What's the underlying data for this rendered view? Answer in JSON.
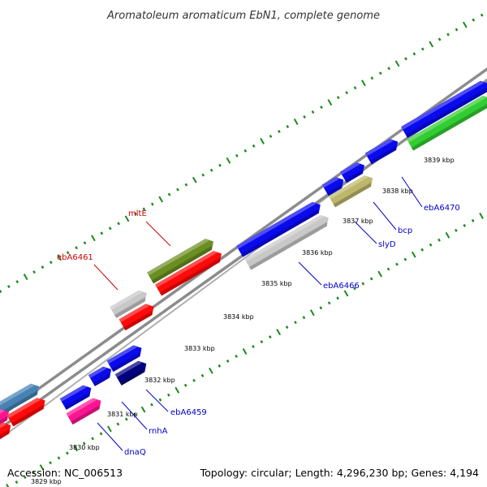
{
  "title": "Aromatoleum aromaticum EbN1, complete genome",
  "footer": {
    "accession": "Accession: NC_006513",
    "summary": "Topology: circular; Length: 4,296,230 bp; Genes: 4,194"
  },
  "kbp_ticks": [
    "3829 kbp",
    "3830 kbp",
    "3831 kbp",
    "3832 kbp",
    "3833 kbp",
    "3834 kbp",
    "3835 kbp",
    "3836 kbp",
    "3837 kbp",
    "3838 kbp",
    "3839 kbp"
  ],
  "gene_labels": [
    {
      "id": "mltE",
      "text": "mltE",
      "color": "#cc0000"
    },
    {
      "id": "ebA6461",
      "text": "ebA6461",
      "color": "#cc0000"
    },
    {
      "id": "ebA6459",
      "text": "ebA6459",
      "color": "#0000cc"
    },
    {
      "id": "rnhA",
      "text": "rnhA",
      "color": "#0000cc"
    },
    {
      "id": "dnaQ",
      "text": "dnaQ",
      "color": "#0000cc"
    },
    {
      "id": "ebA6466",
      "text": "ebA6466",
      "color": "#0000cc"
    },
    {
      "id": "slyD",
      "text": "slyD",
      "color": "#0000cc"
    },
    {
      "id": "bcp",
      "text": "bcp",
      "color": "#0000cc"
    },
    {
      "id": "ebA6470",
      "text": "ebA6470",
      "color": "#0000cc"
    }
  ],
  "colors": {
    "backbone": "#8c8c8c",
    "tick": "#1a8a1a",
    "blue": "#0a0aee",
    "red": "#ff0a0a",
    "grey": "#c8c8c8",
    "olive": "#6b8e23",
    "khaki": "#bdb76b",
    "green": "#32cd32",
    "steel": "#4682b4",
    "magenta": "#ff1493",
    "navy": "#000080"
  },
  "features": [
    {
      "lane": "a",
      "color": "steel"
    },
    {
      "lane": "b",
      "color": "magenta"
    },
    {
      "lane": "b",
      "color": "red"
    },
    {
      "lane": "b",
      "color": "red"
    },
    {
      "lane": "a",
      "color": "blue"
    },
    {
      "lane": "b",
      "color": "magenta"
    },
    {
      "lane": "a",
      "color": "blue"
    },
    {
      "lane": "a",
      "color": "blue"
    },
    {
      "lane": "b",
      "color": "navy"
    },
    {
      "lane": "a",
      "color": "grey"
    },
    {
      "lane": "b",
      "color": "red"
    },
    {
      "lane": "a",
      "color": "olive"
    },
    {
      "lane": "b",
      "color": "red"
    },
    {
      "lane": "a",
      "color": "blue"
    },
    {
      "lane": "b",
      "color": "grey"
    },
    {
      "lane": "a",
      "color": "blue"
    },
    {
      "lane": "a",
      "color": "blue"
    },
    {
      "lane": "b",
      "color": "khaki"
    },
    {
      "lane": "a",
      "color": "blue"
    },
    {
      "lane": "a",
      "color": "blue"
    },
    {
      "lane": "b",
      "color": "green"
    }
  ]
}
